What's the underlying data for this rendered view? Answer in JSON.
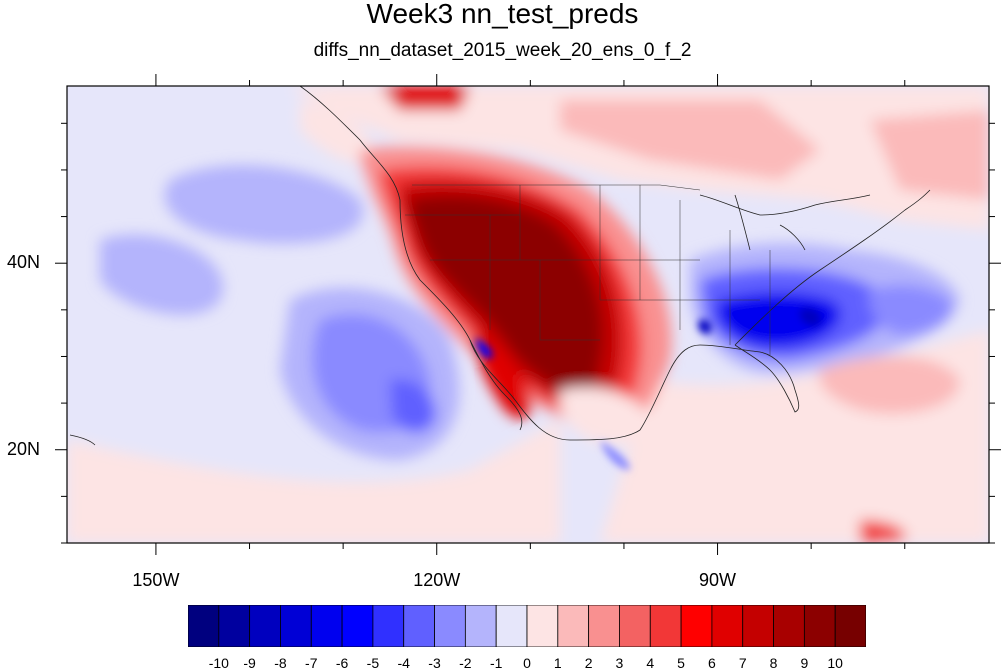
{
  "title": "Week3 nn_test_preds",
  "subtitle": "diffs_nn_dataset_2015_week_20_ens_0_f_2",
  "axes": {
    "lon_ticks": [
      {
        "lon": -150,
        "label": "150W"
      },
      {
        "lon": -120,
        "label": "120W"
      },
      {
        "lon": -90,
        "label": "90W"
      }
    ],
    "lat_ticks": [
      {
        "lat": 40,
        "label": "40N"
      },
      {
        "lat": 20,
        "label": "20N"
      }
    ]
  },
  "map_extent": {
    "lon_min": -159.5,
    "lon_max": -61,
    "lat_min": 10,
    "lat_max": 59
  },
  "colorbar": {
    "labels": [
      "-10",
      "-9",
      "-8",
      "-7",
      "-6",
      "-5",
      "-4",
      "-3",
      "-2",
      "-1",
      "0",
      "1",
      "2",
      "3",
      "4",
      "5",
      "6",
      "7",
      "8",
      "9",
      "10"
    ],
    "colors": [
      "#00007f",
      "#00009f",
      "#0000bf",
      "#0000d6",
      "#0000ef",
      "#0000ff",
      "#3030ff",
      "#6060ff",
      "#8a8aff",
      "#b4b4fc",
      "#e6e6fa",
      "#fde4e4",
      "#fbbaba",
      "#f99090",
      "#f36262",
      "#f23737",
      "#ff0000",
      "#e00000",
      "#c40000",
      "#a80000",
      "#8c0000",
      "#770000"
    ]
  }
}
